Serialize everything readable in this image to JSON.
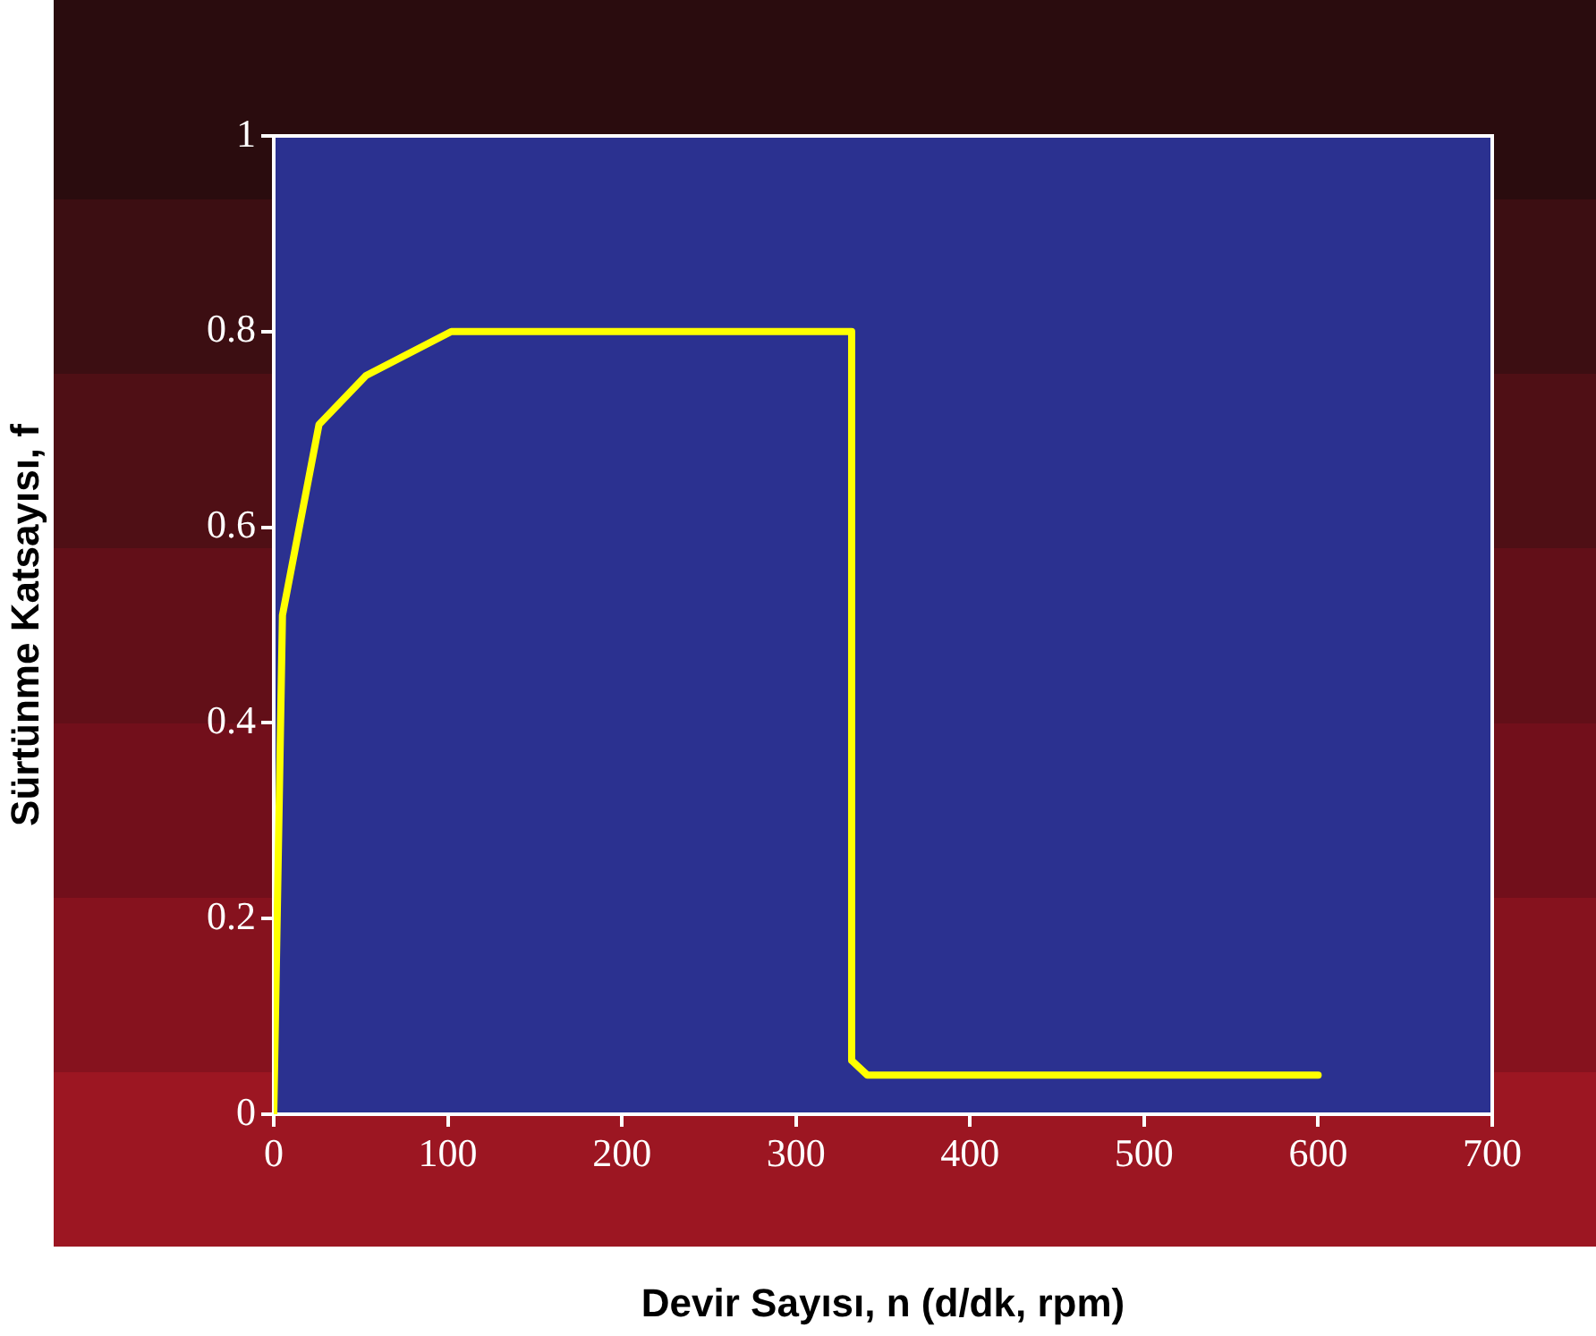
{
  "chart_data": {
    "type": "line",
    "xlabel": "Devir Sayısı, n (d/dk, rpm)",
    "ylabel": "Sürtünme Katsayısı, f",
    "xlim": [
      0,
      700
    ],
    "xticks": [
      0,
      100,
      200,
      300,
      400,
      500,
      600,
      700
    ],
    "ylim": [
      0,
      1
    ],
    "yticks": [
      0,
      0.2,
      0.4,
      0.6,
      0.8,
      1
    ],
    "grid": false,
    "legend": false,
    "marker": "none",
    "line_style": "solid",
    "series": [
      {
        "color": "#ffff00",
        "x": [
          0,
          5,
          26,
          53,
          102,
          332,
          332,
          341,
          600
        ],
        "values": [
          0,
          0.51,
          0.705,
          0.755,
          0.8,
          0.8,
          0.055,
          0.04,
          0.04
        ]
      }
    ]
  }
}
